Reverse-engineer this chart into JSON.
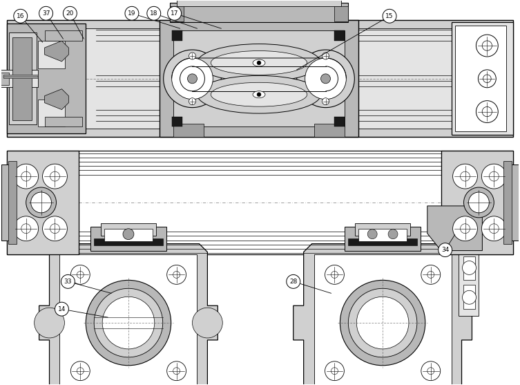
{
  "bg_color": "#ffffff",
  "lc": "#000000",
  "gf_dark": "#a0a0a0",
  "gf_mid": "#b8b8b8",
  "gf_light": "#d0d0d0",
  "gf_vlight": "#e4e4e4",
  "black": "#1a1a1a",
  "white": "#ffffff",
  "figw": 7.53,
  "figh": 5.57,
  "dpi": 100
}
